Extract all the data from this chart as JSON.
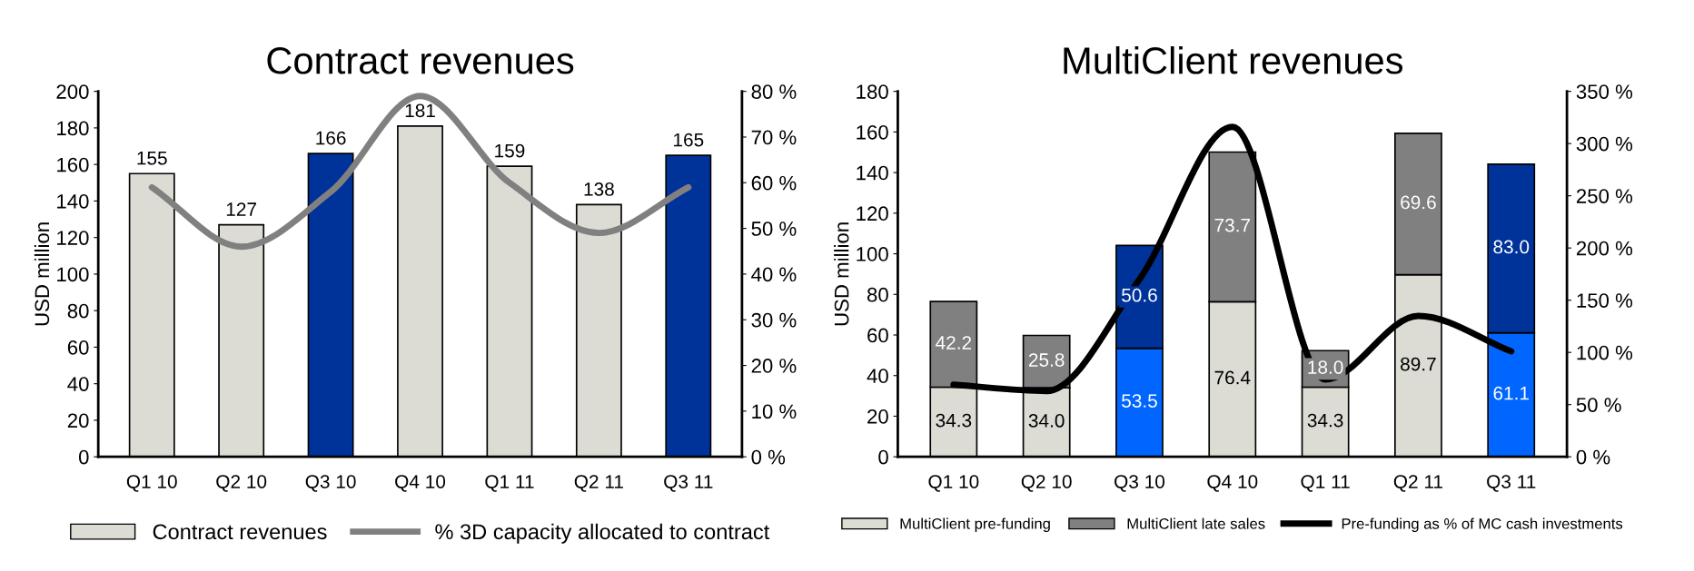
{
  "chart_data": [
    {
      "type": "bar",
      "title": "Contract revenues",
      "ylabel": "USD million",
      "categories": [
        "Q1 10",
        "Q2 10",
        "Q3 10",
        "Q4 10",
        "Q1 11",
        "Q2 11",
        "Q3 11"
      ],
      "series": [
        {
          "name": "Contract revenues",
          "type": "bar",
          "color": "#dcdcd5",
          "colors": [
            "#dcdcd5",
            "#dcdcd5",
            "#003399",
            "#dcdcd5",
            "#dcdcd5",
            "#dcdcd5",
            "#003399"
          ],
          "values": [
            155,
            127,
            166,
            181,
            159,
            138,
            165
          ],
          "data_labels": true
        },
        {
          "name": "% 3D capacity allocated to contract",
          "type": "line",
          "axis": "y2",
          "color": "#808080",
          "values": [
            59,
            46,
            58,
            79,
            60,
            49,
            59
          ]
        }
      ],
      "ylim": [
        0,
        200
      ],
      "yticks": [
        0,
        20,
        40,
        60,
        80,
        100,
        120,
        140,
        160,
        180,
        200
      ],
      "y2lim": [
        0,
        80
      ],
      "y2ticks": [
        {
          "value": 0,
          "label": "0 %"
        },
        {
          "value": 10,
          "label": "10 %"
        },
        {
          "value": 20,
          "label": "20 %"
        },
        {
          "value": 30,
          "label": "30 %"
        },
        {
          "value": 40,
          "label": "40 %"
        },
        {
          "value": 50,
          "label": "50 %"
        },
        {
          "value": 60,
          "label": "60 %"
        },
        {
          "value": 70,
          "label": "70 %"
        },
        {
          "value": 80,
          "label": "80 %"
        }
      ],
      "legend": "bottom",
      "grid": false
    },
    {
      "type": "bar",
      "stacked": true,
      "title": "MultiClient revenues",
      "ylabel": "USD million",
      "categories": [
        "Q1 10",
        "Q2 10",
        "Q3 10",
        "Q4 10",
        "Q1 11",
        "Q2 11",
        "Q3 11"
      ],
      "series": [
        {
          "name": "MultiClient pre-funding",
          "color": "#dcdcd5",
          "colors": [
            "#dcdcd5",
            "#dcdcd5",
            "#0066ff",
            "#dcdcd5",
            "#dcdcd5",
            "#dcdcd5",
            "#0066ff"
          ],
          "values": [
            34.3,
            34.0,
            53.5,
            76.4,
            34.3,
            89.7,
            61.1
          ],
          "value_labels": [
            "34.3",
            "34.0",
            "53.5",
            "76.4",
            "34.3",
            "89.7",
            "61.1"
          ]
        },
        {
          "name": "MultiClient late sales",
          "color": "#808080",
          "colors": [
            "#808080",
            "#808080",
            "#003399",
            "#808080",
            "#808080",
            "#808080",
            "#003399"
          ],
          "values": [
            42.2,
            25.8,
            50.6,
            73.7,
            18.0,
            69.6,
            83.0
          ],
          "value_labels": [
            "42.2",
            "25.8",
            "50.6",
            "73.7",
            "18.0",
            "69.6",
            "83.0"
          ]
        },
        {
          "name": "Pre-funding as % of MC cash investments",
          "type": "line",
          "axis": "y2",
          "color": "#000000",
          "values": [
            69,
            63,
            170,
            316,
            74,
            135,
            101
          ]
        }
      ],
      "ylim": [
        0,
        180
      ],
      "yticks": [
        0,
        20,
        40,
        60,
        80,
        100,
        120,
        140,
        160,
        180
      ],
      "y2lim": [
        0,
        350
      ],
      "y2ticks": [
        {
          "value": 0,
          "label": "0 %"
        },
        {
          "value": 50,
          "label": "50 %"
        },
        {
          "value": 100,
          "label": "100 %"
        },
        {
          "value": 150,
          "label": "150 %"
        },
        {
          "value": 200,
          "label": "200 %"
        },
        {
          "value": 250,
          "label": "250 %"
        },
        {
          "value": 300,
          "label": "300 %"
        },
        {
          "value": 350,
          "label": "350 %"
        }
      ],
      "legend": "bottom",
      "grid": false
    }
  ]
}
